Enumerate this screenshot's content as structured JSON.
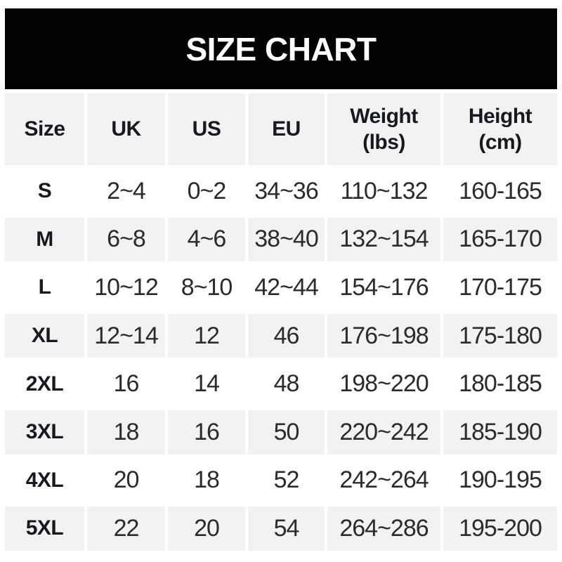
{
  "title": "SIZE CHART",
  "colors": {
    "banner_bg": "#020202",
    "banner_text": "#ffffff",
    "row_alt_bg": "#f2f2f2",
    "row_bg": "#ffffff",
    "header_text": "#16191e",
    "data_text": "#2b2b2b"
  },
  "table": {
    "headers": [
      {
        "line1": "Size",
        "line2": ""
      },
      {
        "line1": "UK",
        "line2": ""
      },
      {
        "line1": "US",
        "line2": ""
      },
      {
        "line1": "EU",
        "line2": ""
      },
      {
        "line1": "Weight",
        "line2": "(lbs)"
      },
      {
        "line1": "Height",
        "line2": "(cm)"
      }
    ],
    "rows": [
      {
        "size": "S",
        "uk": "2~4",
        "us": "0~2",
        "eu": "34~36",
        "weight": "110~132",
        "height": "160-165"
      },
      {
        "size": "M",
        "uk": "6~8",
        "us": "4~6",
        "eu": "38~40",
        "weight": "132~154",
        "height": "165-170"
      },
      {
        "size": "L",
        "uk": "10~12",
        "us": "8~10",
        "eu": "42~44",
        "weight": "154~176",
        "height": "170-175"
      },
      {
        "size": "XL",
        "uk": "12~14",
        "us": "12",
        "eu": "46",
        "weight": "176~198",
        "height": "175-180"
      },
      {
        "size": "2XL",
        "uk": "16",
        "us": "14",
        "eu": "48",
        "weight": "198~220",
        "height": "180-185"
      },
      {
        "size": "3XL",
        "uk": "18",
        "us": "16",
        "eu": "50",
        "weight": "220~242",
        "height": "185-190"
      },
      {
        "size": "4XL",
        "uk": "20",
        "us": "18",
        "eu": "52",
        "weight": "242~264",
        "height": "190-195"
      },
      {
        "size": "5XL",
        "uk": "22",
        "us": "20",
        "eu": "54",
        "weight": "264~286",
        "height": "195-200"
      }
    ]
  },
  "chart_data": {
    "type": "table",
    "title": "SIZE CHART",
    "columns": [
      "Size",
      "UK",
      "US",
      "EU",
      "Weight (lbs)",
      "Height (cm)"
    ],
    "rows": [
      [
        "S",
        "2~4",
        "0~2",
        "34~36",
        "110~132",
        "160-165"
      ],
      [
        "M",
        "6~8",
        "4~6",
        "38~40",
        "132~154",
        "165-170"
      ],
      [
        "L",
        "10~12",
        "8~10",
        "42~44",
        "154~176",
        "170-175"
      ],
      [
        "XL",
        "12~14",
        "12",
        "46",
        "176~198",
        "175-180"
      ],
      [
        "2XL",
        "16",
        "14",
        "48",
        "198~220",
        "180-185"
      ],
      [
        "3XL",
        "18",
        "16",
        "50",
        "220~242",
        "185-190"
      ],
      [
        "4XL",
        "20",
        "18",
        "52",
        "242~264",
        "190-195"
      ],
      [
        "5XL",
        "22",
        "20",
        "54",
        "264~286",
        "195-200"
      ]
    ]
  }
}
